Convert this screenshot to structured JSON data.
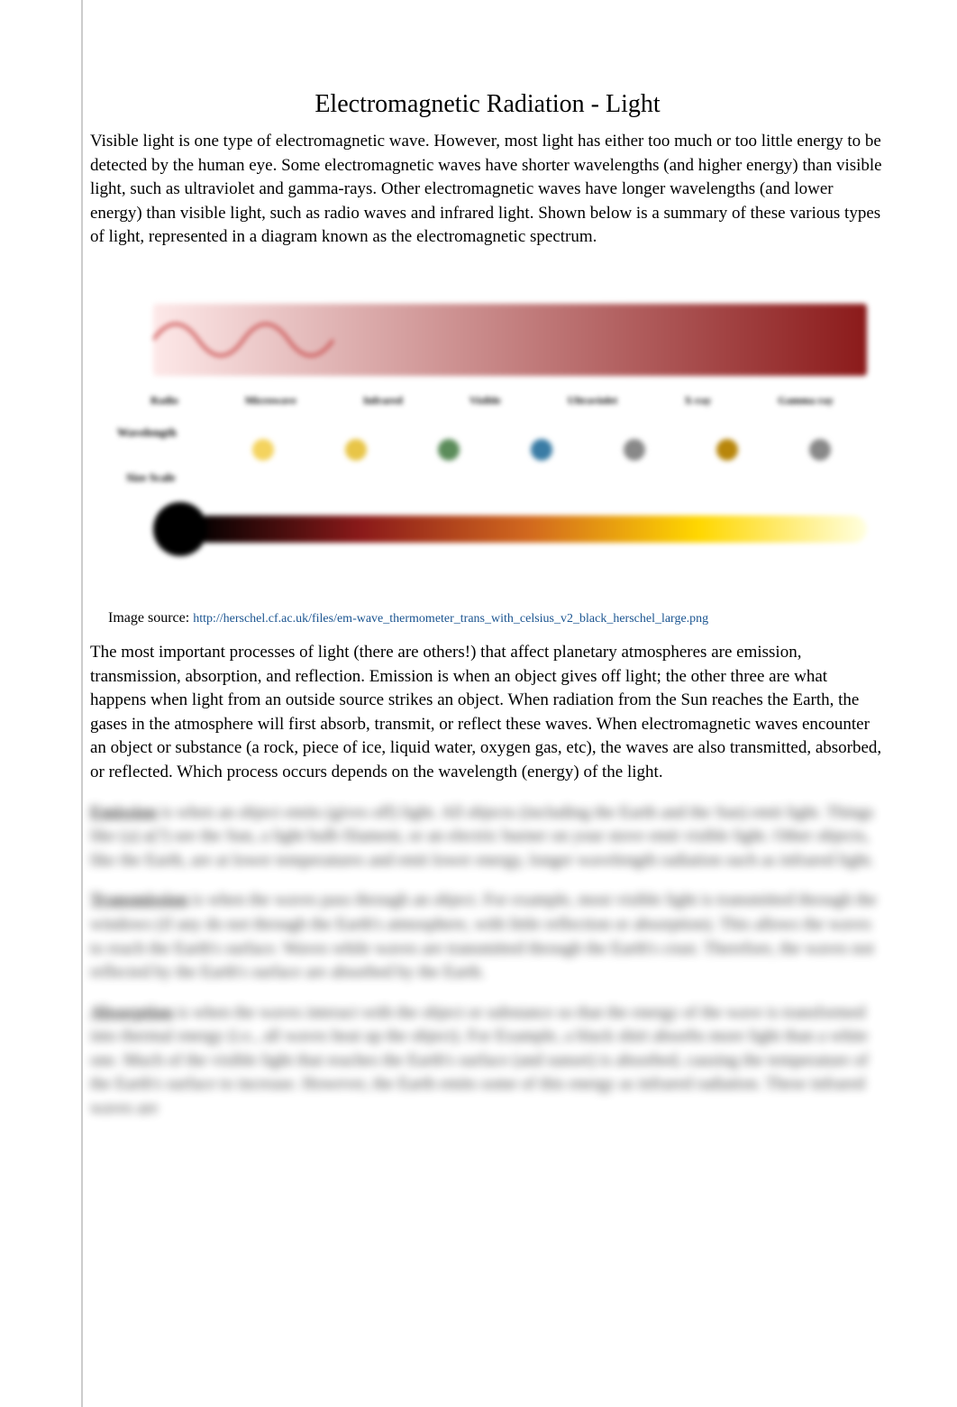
{
  "title": "Electromagnetic Radiation - Light",
  "intro": "Visible light is one type of electromagnetic wave. However, most light has either too much or too little energy to  be detected by the human eye. Some electromagnetic waves have shorter wavelengths (and higher energy) than  visible light, such as ultraviolet and gamma-rays. Other electromagnetic waves have longer wavelengths (and  lower energy) than visible light, such as radio waves and infrared light. Shown below is a summary of these  various types of light, represented in a diagram known as the electromagnetic spectrum.",
  "diagram": {
    "wave_gradient_start": "#fde8e8",
    "wave_gradient_end": "#8b1a1a",
    "wave_line_color": "#c94444",
    "labels": [
      "Radio",
      "Microwave",
      "Infrared",
      "Visible",
      "Ultraviolet",
      "X-ray",
      "Gamma ray"
    ],
    "wavelength_label": "Wavelength",
    "sizescale_label": "Size Scale",
    "icon_colors": [
      "#f4d35e",
      "#e8c547",
      "#5b8c5a",
      "#3a7ca5",
      "#888888",
      "#b8860b",
      "#888888"
    ],
    "thermo_bulb_color": "#000000",
    "thermo_gradient_colors": [
      "#000000",
      "#8b1a1a",
      "#d2691e",
      "#ffd700",
      "#ffffe0"
    ]
  },
  "source_prefix": "Image source:",
  "source_url": "http://herschel.cf.ac.uk/files/em-wave_thermometer_trans_with_celsius_v2_black_herschel_large.png",
  "paragraph2": "The most important processes of light (there are others!) that affect planetary atmospheres are emission,  transmission, absorption, and reflection. Emission is when an object gives off light; the other three are what  happens when light from an outside source strikes an object. When radiation from the Sun reaches the Earth, the  gases in the atmosphere will first absorb, transmit, or reflect these waves. When electromagnetic waves encounter an object or substance (a rock, piece of ice, liquid water, oxygen gas,  etc), the waves are also transmitted, absorbed, or reflected. Which process occurs depends on the  wavelength (energy) of the light.",
  "blurred": {
    "emission_term": "Emission",
    "emission_text": " is when an object emits (gives off) light. All objects (including the Earth and the Sun) emit light. Things like (a) a(?) see the Sun, a light bulb filament, or an electric burner on your stove emit visible light. Other objects, like the Earth, are at lower temperatures and emit lower energy, longer wavelength radiation such as infrared light.",
    "transmission_term": "Transmission",
    "transmission_text": " is when the waves pass through an object. For example, most visible light is transmitted through the windows (if any do not through the Earth's atmosphere, with little reflection or absorption). This allows the waves to reach the Earth's surface. Waves while waves are transmitted through the Earth's crust. Therefore, the waves not reflected by the Earth's surface are absorbed by the Earth.",
    "absorption_term": "Absorption",
    "absorption_text": " is when the waves interact with the object or substance so that the energy of the wave is transformed into thermal energy (i.e., all waves heat up the object). For Example, a black shirt absorbs more light than a white one. Much of the visible light that reaches the Earth's surface (and sunset) is absorbed, causing the temperature of the Earth's surface to increase. However, the Earth emits some of this energy as infrared radiation. These infrared waves are"
  },
  "colors": {
    "text": "#000000",
    "link": "#1a5490",
    "background": "#ffffff",
    "vline": "#cccccc"
  },
  "fonts": {
    "title_size": 28,
    "body_size": 19,
    "source_size": 16,
    "link_size": 14
  }
}
